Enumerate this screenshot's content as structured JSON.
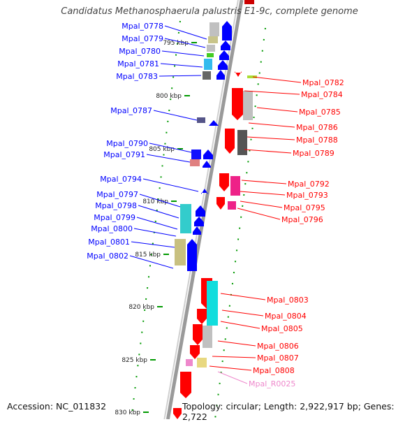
{
  "title": "Candidatus Methanosphaerula palustris E1-9c, complete genome",
  "footer": {
    "accession": "Accession: NC_011832",
    "summary": "Topology: circular; Length: 2,922,917 bp; Genes: 2,722"
  },
  "colors": {
    "left_gene": "#0000ff",
    "right_gene": "#ff0000",
    "rna_gene": "#ee88cc",
    "tick": "#009900",
    "backbone": "#888888"
  },
  "scale_ticks": [
    {
      "label": "795 kbp"
    },
    {
      "label": "800 kbp"
    },
    {
      "label": "805 kbp"
    },
    {
      "label": "810 kbp"
    },
    {
      "label": "815 kbp"
    },
    {
      "label": "820 kbp"
    },
    {
      "label": "825 kbp"
    },
    {
      "label": "830 kbp"
    }
  ],
  "left_labels": [
    {
      "label": "Mpal_0778"
    },
    {
      "label": "Mpal_0779"
    },
    {
      "label": "Mpal_0780"
    },
    {
      "label": "Mpal_0781"
    },
    {
      "label": "Mpal_0783"
    },
    {
      "label": "Mpal_0787"
    },
    {
      "label": "Mpal_0790"
    },
    {
      "label": "Mpal_0791"
    },
    {
      "label": "Mpal_0794"
    },
    {
      "label": "Mpal_0797"
    },
    {
      "label": "Mpal_0798"
    },
    {
      "label": "Mpal_0799"
    },
    {
      "label": "Mpal_0800"
    },
    {
      "label": "Mpal_0801"
    },
    {
      "label": "Mpal_0802"
    }
  ],
  "right_labels": [
    {
      "label": "Mpal_0782"
    },
    {
      "label": "Mpal_0784"
    },
    {
      "label": "Mpal_0785"
    },
    {
      "label": "Mpal_0786"
    },
    {
      "label": "Mpal_0788"
    },
    {
      "label": "Mpal_0789"
    },
    {
      "label": "Mpal_0792"
    },
    {
      "label": "Mpal_0793"
    },
    {
      "label": "Mpal_0795"
    },
    {
      "label": "Mpal_0796"
    },
    {
      "label": "Mpal_0803"
    },
    {
      "label": "Mpal_0804"
    },
    {
      "label": "Mpal_0805"
    },
    {
      "label": "Mpal_0806"
    },
    {
      "label": "Mpal_0807"
    },
    {
      "label": "Mpal_0808"
    },
    {
      "label": "Mpal_R0025",
      "rna": true
    }
  ]
}
